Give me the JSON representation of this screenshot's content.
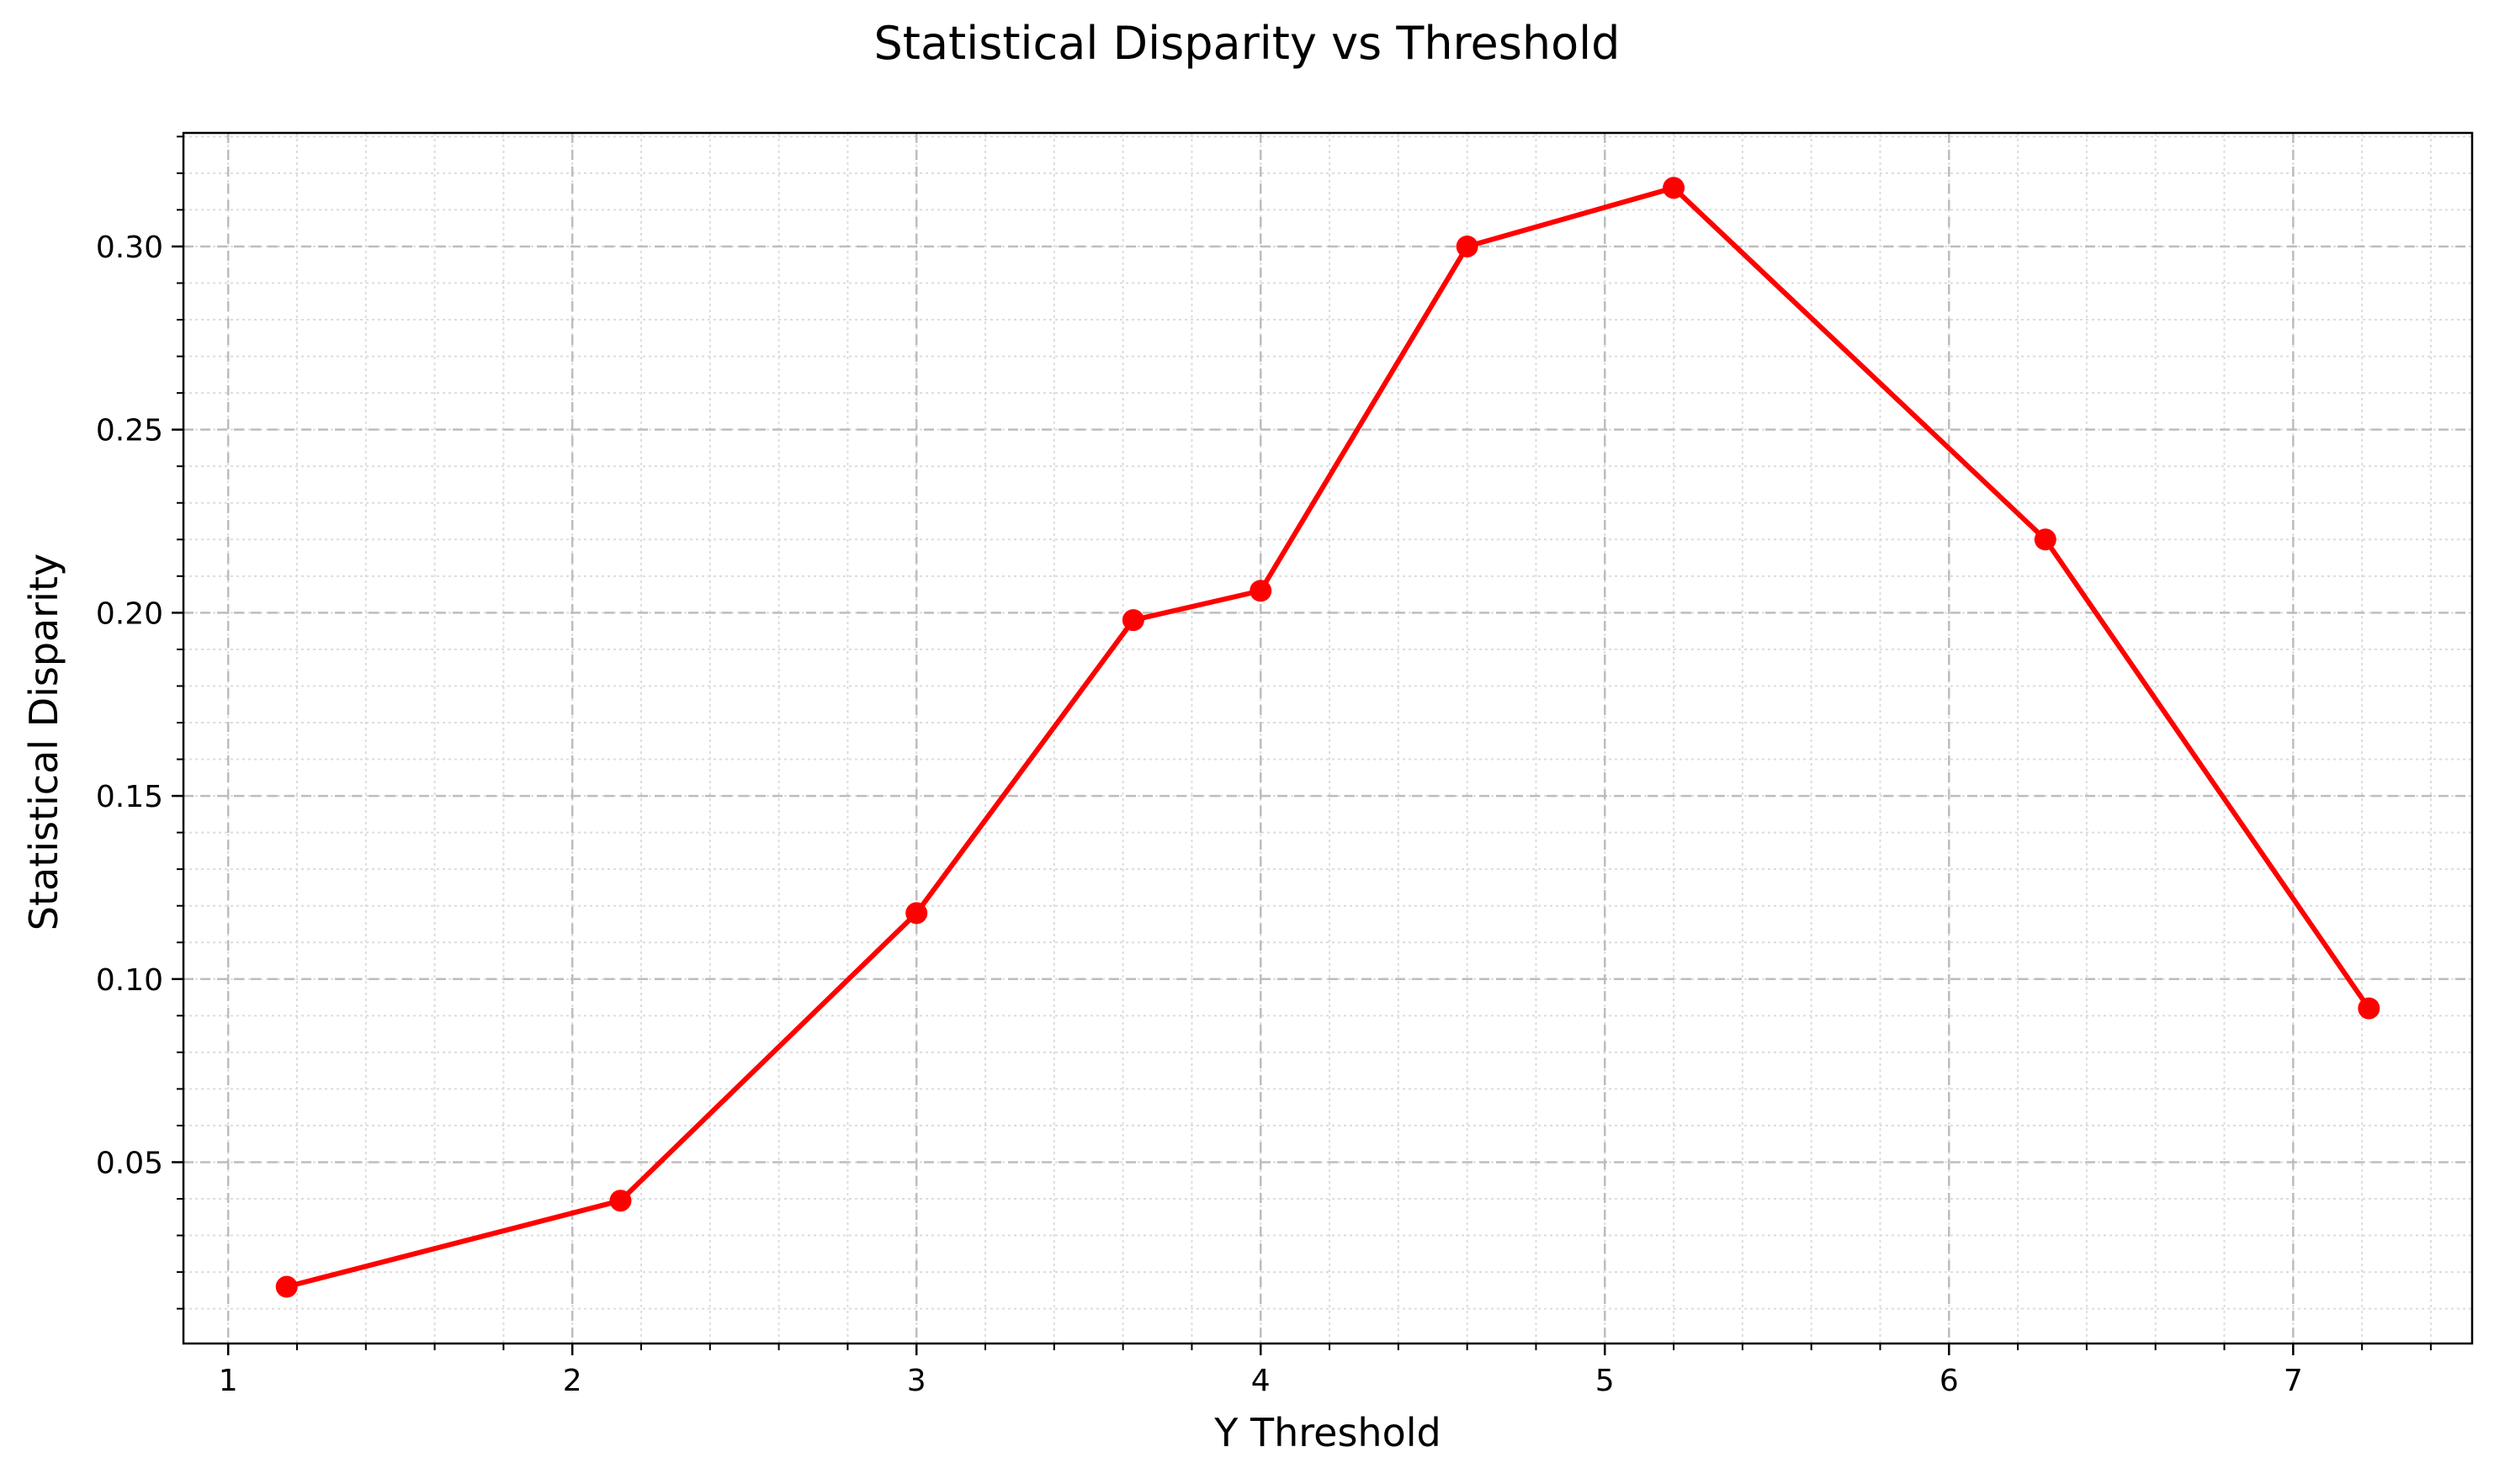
{
  "chart_data": {
    "type": "line",
    "title": "Statistical Disparity vs Threshold",
    "xlabel": "Y Threshold",
    "ylabel": "Statistical Disparity",
    "xlim": [
      0.87,
      7.52
    ],
    "ylim": [
      0.0005,
      0.331
    ],
    "xticks": [
      1,
      2,
      3,
      4,
      5,
      6,
      7
    ],
    "xtick_labels": [
      "1",
      "2",
      "3",
      "4",
      "5",
      "6",
      "7"
    ],
    "yticks": [
      0.05,
      0.1,
      0.15,
      0.2,
      0.25,
      0.3
    ],
    "ytick_labels": [
      "0.05",
      "0.10",
      "0.15",
      "0.20",
      "0.25",
      "0.30"
    ],
    "x_minor_step": 0.2,
    "y_minor_step": 0.01,
    "grid": true,
    "legend": "none",
    "series": [
      {
        "color": "#ff0000",
        "marker": "circle",
        "x": [
          1.17,
          2.14,
          3.0,
          3.63,
          4.0,
          4.6,
          5.2,
          6.28,
          7.22
        ],
        "y": [
          0.016,
          0.0395,
          0.118,
          0.198,
          0.206,
          0.3,
          0.316,
          0.22,
          0.092
        ]
      }
    ]
  }
}
